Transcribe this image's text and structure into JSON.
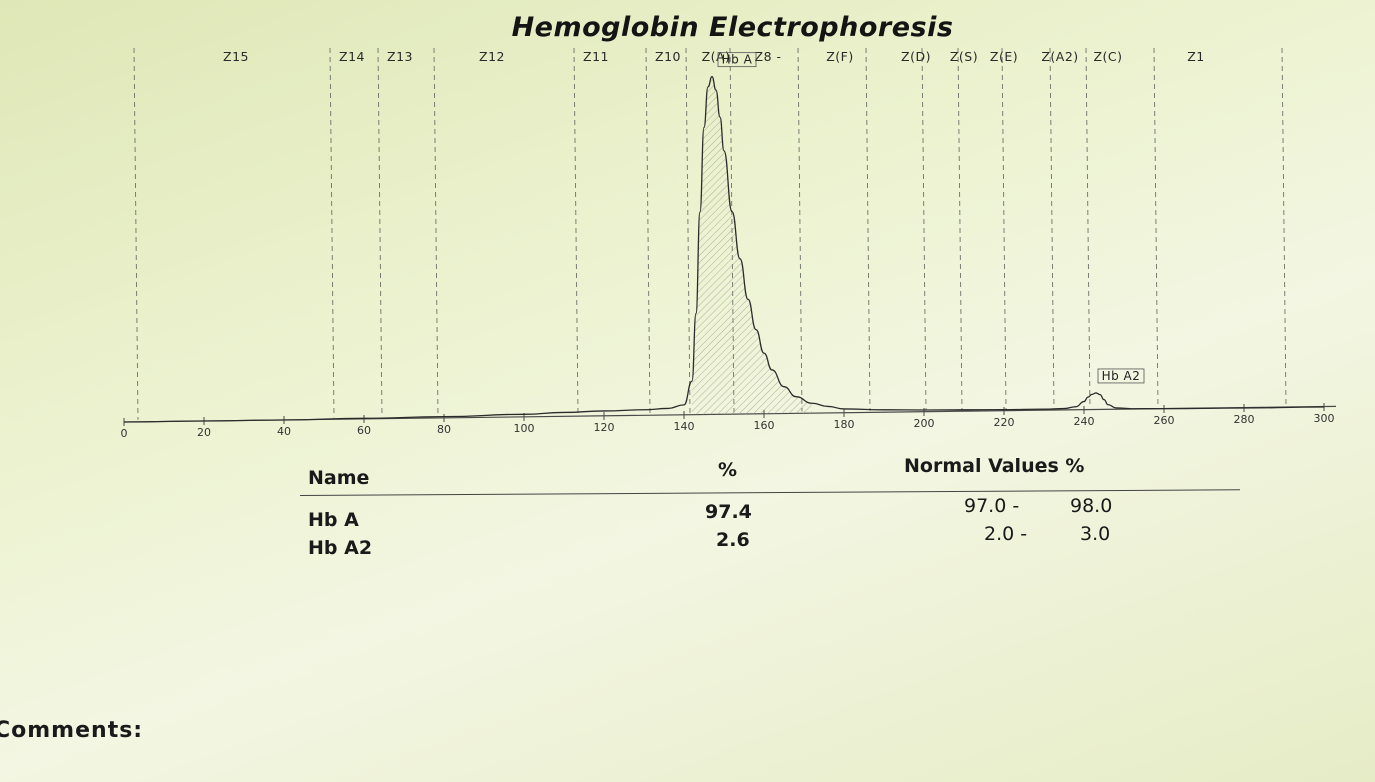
{
  "title": "Hemoglobin Electrophoresis",
  "chart_data": {
    "type": "line",
    "title": "Hemoglobin Electrophoresis",
    "xlim": [
      0,
      300
    ],
    "x_ticks": [
      0,
      20,
      40,
      60,
      80,
      100,
      120,
      140,
      160,
      180,
      200,
      220,
      240,
      260,
      280,
      300
    ],
    "x_tick_labels": [
      "0",
      "20",
      "40",
      "60",
      "80",
      "100",
      "120",
      "140",
      "160",
      "180",
      "200",
      "220",
      "240",
      "260",
      "280",
      "300"
    ],
    "zones": [
      {
        "label": "Z15",
        "x": 28
      },
      {
        "label": "Z14",
        "x": 57
      },
      {
        "label": "Z13",
        "x": 69
      },
      {
        "label": "Z12",
        "x": 92
      },
      {
        "label": "Z11",
        "x": 118
      },
      {
        "label": "Z10",
        "x": 136
      },
      {
        "label": "Z(A)",
        "x": 148
      },
      {
        "label": "Z8 -",
        "x": 161
      },
      {
        "label": "Z(F)",
        "x": 179
      },
      {
        "label": "Z(D)",
        "x": 198
      },
      {
        "label": "Z(S)",
        "x": 210
      },
      {
        "label": "Z(E)",
        "x": 220
      },
      {
        "label": "Z(A2)",
        "x": 234
      },
      {
        "label": "Z(C)",
        "x": 246
      },
      {
        "label": "Z1",
        "x": 268
      }
    ],
    "zone_boundaries": [
      3,
      52,
      64,
      78,
      113,
      131,
      141,
      152,
      169,
      186,
      200,
      209,
      220,
      232,
      241,
      258,
      290
    ],
    "peaks": [
      {
        "label": "Hb A",
        "x": 147,
        "height": 1.0
      },
      {
        "label": "Hb A2",
        "x": 243,
        "height": 0.05
      }
    ],
    "series": [
      {
        "x": [
          0,
          20,
          40,
          60,
          80,
          100,
          110,
          120,
          130,
          136,
          140,
          142,
          143,
          144,
          145,
          146,
          147,
          148,
          149,
          150,
          152,
          154,
          156,
          158,
          160,
          162,
          165,
          168,
          172,
          176,
          180,
          190,
          200,
          210,
          220,
          230,
          235,
          238,
          240,
          241,
          242,
          243,
          244,
          245,
          246,
          248,
          252,
          260,
          280,
          300
        ],
        "y": [
          0,
          0,
          0,
          0.002,
          0.004,
          0.008,
          0.012,
          0.015,
          0.017,
          0.02,
          0.03,
          0.1,
          0.3,
          0.6,
          0.85,
          0.97,
          1.0,
          0.96,
          0.88,
          0.78,
          0.6,
          0.46,
          0.34,
          0.25,
          0.18,
          0.13,
          0.08,
          0.05,
          0.03,
          0.02,
          0.012,
          0.008,
          0.006,
          0.005,
          0.004,
          0.004,
          0.005,
          0.01,
          0.025,
          0.038,
          0.046,
          0.05,
          0.045,
          0.03,
          0.015,
          0.005,
          0.002,
          0.001,
          0,
          0
        ]
      }
    ],
    "shaded_range": [
      142,
      172
    ]
  },
  "table": {
    "headers": {
      "name": "Name",
      "percent": "%",
      "normal": "Normal Values %"
    },
    "rows": [
      {
        "name": "Hb A",
        "percent": "97.4",
        "low": "97.0 -",
        "high": "98.0"
      },
      {
        "name": "Hb A2",
        "percent": "2.6",
        "low": "2.0 -",
        "high": "3.0"
      }
    ]
  },
  "comments_label": "Comments:"
}
